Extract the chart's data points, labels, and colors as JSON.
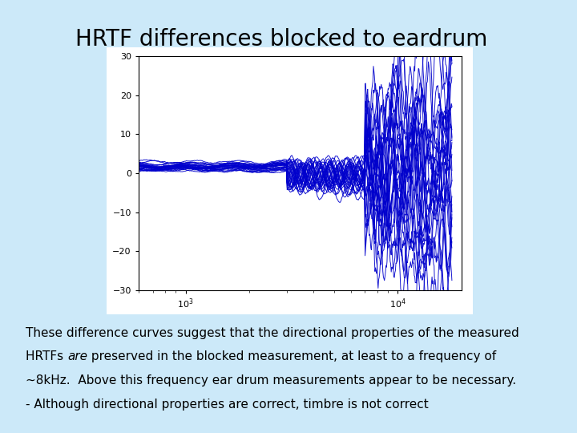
{
  "title": "HRTF differences blocked to eardrum",
  "title_fontsize": 20,
  "title_fontweight": "normal",
  "bg_color": "#cce9f9",
  "plot_bg_color": "#ffffff",
  "line_color": "#0000cc",
  "xlim_log": [
    2.778,
    4.301
  ],
  "ylim": [
    -30,
    30
  ],
  "yticks": [
    -30,
    -20,
    -10,
    0,
    10,
    20,
    30
  ],
  "body_text_line1": "These difference curves suggest that the directional properties of the measured",
  "body_text_line2": "HRTFs ",
  "body_text_line2_italic": "are",
  "body_text_line2_rest": " preserved in the blocked measurement, at least to a frequency of",
  "body_text_line3": "~8kHz.  Above this frequency ear drum measurements appear to be necessary.",
  "body_text_line4": "- Although directional properties are correct, timbre is not correct",
  "body_fontsize": 11,
  "n_curves": 30,
  "seed": 42
}
